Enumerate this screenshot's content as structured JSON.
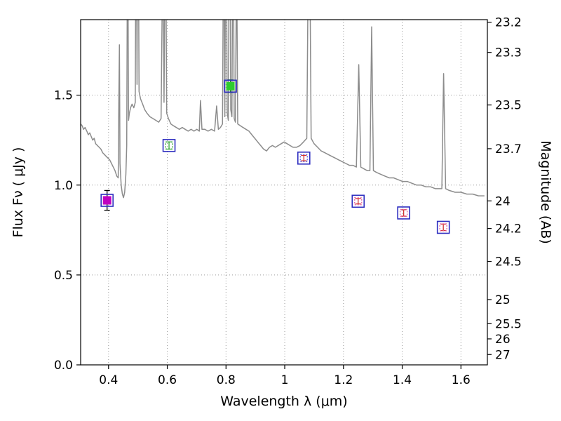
{
  "figure": {
    "background": "#ffffff"
  },
  "chart_data": {
    "type": "line",
    "title": "",
    "xlabel": "Wavelength  λ (μm)",
    "ylabel_left": "Flux  Fν  ( μJy )",
    "ylabel_right": "Magnitude (AB)",
    "xlim": [
      0.305,
      1.69
    ],
    "ylim": [
      0,
      1.92
    ],
    "mag_zeropoint": 23.9,
    "grid": {
      "on": true,
      "linestyle": "dotted",
      "color": "#9a9a9a"
    },
    "x_ticks": [
      {
        "v": 0.4,
        "label": "0.4"
      },
      {
        "v": 0.6,
        "label": "0.6"
      },
      {
        "v": 0.8,
        "label": "0.8"
      },
      {
        "v": 1.0,
        "label": "1"
      },
      {
        "v": 1.2,
        "label": "1.2"
      },
      {
        "v": 1.4,
        "label": "1.4"
      },
      {
        "v": 1.6,
        "label": "1.6"
      }
    ],
    "y_ticks_left": [
      {
        "v": 0.0,
        "label": "0.0"
      },
      {
        "v": 0.5,
        "label": "0.5"
      },
      {
        "v": 1.0,
        "label": "1.0"
      },
      {
        "v": 1.5,
        "label": "1.5"
      }
    ],
    "y_ticks_right": [
      {
        "mag": 23.2,
        "label": "23.2"
      },
      {
        "mag": 23.3,
        "label": "23.3"
      },
      {
        "mag": 23.5,
        "label": "23.5"
      },
      {
        "mag": 23.7,
        "label": "23.7"
      },
      {
        "mag": 24.0,
        "label": "24"
      },
      {
        "mag": 24.2,
        "label": "24.2"
      },
      {
        "mag": 24.5,
        "label": "24.5"
      },
      {
        "mag": 25.0,
        "label": "25"
      },
      {
        "mag": 25.5,
        "label": "25.5"
      },
      {
        "mag": 26.0,
        "label": "26"
      },
      {
        "mag": 27.0,
        "label": "27"
      }
    ],
    "spectrum": {
      "name": "model-galaxy-spectrum",
      "color": "#8c8c8c",
      "points": [
        [
          0.305,
          1.34
        ],
        [
          0.31,
          1.33
        ],
        [
          0.315,
          1.31
        ],
        [
          0.32,
          1.32
        ],
        [
          0.326,
          1.3
        ],
        [
          0.331,
          1.28
        ],
        [
          0.336,
          1.29
        ],
        [
          0.341,
          1.27
        ],
        [
          0.346,
          1.25
        ],
        [
          0.351,
          1.26
        ],
        [
          0.356,
          1.23
        ],
        [
          0.362,
          1.22
        ],
        [
          0.368,
          1.21
        ],
        [
          0.374,
          1.2
        ],
        [
          0.38,
          1.18
        ],
        [
          0.386,
          1.17
        ],
        [
          0.392,
          1.16
        ],
        [
          0.398,
          1.15
        ],
        [
          0.404,
          1.14
        ],
        [
          0.41,
          1.12
        ],
        [
          0.416,
          1.1
        ],
        [
          0.422,
          1.08
        ],
        [
          0.428,
          1.05
        ],
        [
          0.433,
          1.04
        ],
        [
          0.435,
          1.45
        ],
        [
          0.437,
          1.78
        ],
        [
          0.439,
          1.12
        ],
        [
          0.443,
          1.0
        ],
        [
          0.447,
          0.95
        ],
        [
          0.451,
          0.93
        ],
        [
          0.455,
          0.96
        ],
        [
          0.459,
          1.06
        ],
        [
          0.462,
          1.22
        ],
        [
          0.465,
          2.6
        ],
        [
          0.468,
          1.36
        ],
        [
          0.471,
          1.4
        ],
        [
          0.475,
          1.43
        ],
        [
          0.48,
          1.45
        ],
        [
          0.486,
          1.43
        ],
        [
          0.491,
          1.46
        ],
        [
          0.494,
          2.8
        ],
        [
          0.497,
          1.56
        ],
        [
          0.5,
          3.0
        ],
        [
          0.504,
          1.52
        ],
        [
          0.509,
          1.48
        ],
        [
          0.516,
          1.45
        ],
        [
          0.523,
          1.42
        ],
        [
          0.531,
          1.4
        ],
        [
          0.541,
          1.38
        ],
        [
          0.551,
          1.37
        ],
        [
          0.561,
          1.36
        ],
        [
          0.571,
          1.35
        ],
        [
          0.579,
          1.37
        ],
        [
          0.585,
          2.4
        ],
        [
          0.589,
          1.46
        ],
        [
          0.594,
          2.6
        ],
        [
          0.598,
          1.4
        ],
        [
          0.604,
          1.37
        ],
        [
          0.612,
          1.34
        ],
        [
          0.621,
          1.33
        ],
        [
          0.631,
          1.32
        ],
        [
          0.641,
          1.31
        ],
        [
          0.651,
          1.32
        ],
        [
          0.661,
          1.31
        ],
        [
          0.671,
          1.3
        ],
        [
          0.681,
          1.31
        ],
        [
          0.691,
          1.3
        ],
        [
          0.701,
          1.31
        ],
        [
          0.709,
          1.3
        ],
        [
          0.713,
          1.47
        ],
        [
          0.718,
          1.31
        ],
        [
          0.728,
          1.31
        ],
        [
          0.739,
          1.3
        ],
        [
          0.75,
          1.31
        ],
        [
          0.761,
          1.3
        ],
        [
          0.768,
          1.44
        ],
        [
          0.774,
          1.31
        ],
        [
          0.781,
          1.32
        ],
        [
          0.788,
          1.34
        ],
        [
          0.792,
          2.5
        ],
        [
          0.796,
          1.38
        ],
        [
          0.8,
          2.9
        ],
        [
          0.804,
          1.4
        ],
        [
          0.808,
          1.36
        ],
        [
          0.812,
          3.0
        ],
        [
          0.816,
          1.42
        ],
        [
          0.82,
          1.38
        ],
        [
          0.824,
          2.7
        ],
        [
          0.828,
          1.37
        ],
        [
          0.832,
          1.35
        ],
        [
          0.836,
          2.3
        ],
        [
          0.84,
          1.34
        ],
        [
          0.849,
          1.33
        ],
        [
          0.858,
          1.32
        ],
        [
          0.868,
          1.31
        ],
        [
          0.878,
          1.3
        ],
        [
          0.888,
          1.28
        ],
        [
          0.898,
          1.26
        ],
        [
          0.908,
          1.24
        ],
        [
          0.918,
          1.22
        ],
        [
          0.928,
          1.2
        ],
        [
          0.938,
          1.19
        ],
        [
          0.948,
          1.21
        ],
        [
          0.958,
          1.22
        ],
        [
          0.968,
          1.21
        ],
        [
          0.978,
          1.22
        ],
        [
          0.988,
          1.23
        ],
        [
          0.998,
          1.24
        ],
        [
          1.008,
          1.23
        ],
        [
          1.018,
          1.22
        ],
        [
          1.028,
          1.21
        ],
        [
          1.04,
          1.21
        ],
        [
          1.052,
          1.22
        ],
        [
          1.064,
          1.24
        ],
        [
          1.075,
          1.26
        ],
        [
          1.083,
          2.8
        ],
        [
          1.09,
          1.26
        ],
        [
          1.1,
          1.23
        ],
        [
          1.112,
          1.21
        ],
        [
          1.124,
          1.19
        ],
        [
          1.136,
          1.18
        ],
        [
          1.148,
          1.17
        ],
        [
          1.16,
          1.16
        ],
        [
          1.172,
          1.15
        ],
        [
          1.184,
          1.14
        ],
        [
          1.196,
          1.13
        ],
        [
          1.208,
          1.12
        ],
        [
          1.22,
          1.11
        ],
        [
          1.232,
          1.11
        ],
        [
          1.244,
          1.1
        ],
        [
          1.252,
          1.67
        ],
        [
          1.259,
          1.1
        ],
        [
          1.27,
          1.09
        ],
        [
          1.281,
          1.08
        ],
        [
          1.29,
          1.08
        ],
        [
          1.296,
          1.88
        ],
        [
          1.302,
          1.08
        ],
        [
          1.313,
          1.07
        ],
        [
          1.327,
          1.06
        ],
        [
          1.341,
          1.05
        ],
        [
          1.356,
          1.04
        ],
        [
          1.371,
          1.04
        ],
        [
          1.386,
          1.03
        ],
        [
          1.401,
          1.02
        ],
        [
          1.417,
          1.02
        ],
        [
          1.433,
          1.01
        ],
        [
          1.449,
          1.0
        ],
        [
          1.465,
          1.0
        ],
        [
          1.481,
          0.99
        ],
        [
          1.497,
          0.99
        ],
        [
          1.513,
          0.98
        ],
        [
          1.528,
          0.98
        ],
        [
          1.535,
          0.98
        ],
        [
          1.541,
          1.62
        ],
        [
          1.548,
          0.98
        ],
        [
          1.56,
          0.97
        ],
        [
          1.58,
          0.96
        ],
        [
          1.6,
          0.96
        ],
        [
          1.62,
          0.95
        ],
        [
          1.64,
          0.95
        ],
        [
          1.66,
          0.94
        ],
        [
          1.68,
          0.94
        ]
      ]
    },
    "photometry": [
      {
        "x": 0.395,
        "y": 0.915,
        "yerr": 0.055,
        "face": "#c000c0",
        "edge": "#2e2ec0",
        "inner": null,
        "err_color": "#000000"
      },
      {
        "x": 0.606,
        "y": 1.22,
        "yerr": 0.02,
        "face": "none",
        "edge": "#2e2ec0",
        "inner": "#3aa63a",
        "err_color": "#3aa63a"
      },
      {
        "x": 0.815,
        "y": 1.55,
        "yerr": 0.035,
        "face": "#2ecc2e",
        "edge": "#2e2ec0",
        "inner": null,
        "err_color": "#1a7a1a"
      },
      {
        "x": 1.065,
        "y": 1.15,
        "yerr": 0.015,
        "face": "none",
        "edge": "#2e2ec0",
        "inner": "#6a6ae0",
        "err_color": "#d03030"
      },
      {
        "x": 1.25,
        "y": 0.91,
        "yerr": 0.015,
        "face": "none",
        "edge": "#2e2ec0",
        "inner": "#e86aa8",
        "err_color": "#d03030"
      },
      {
        "x": 1.405,
        "y": 0.845,
        "yerr": 0.018,
        "face": "none",
        "edge": "#2e2ec0",
        "inner": "#e86aa8",
        "err_color": "#d03030"
      },
      {
        "x": 1.54,
        "y": 0.765,
        "yerr": 0.018,
        "face": "none",
        "edge": "#2e2ec0",
        "inner": "#e86aa8",
        "err_color": "#d03030"
      }
    ]
  }
}
